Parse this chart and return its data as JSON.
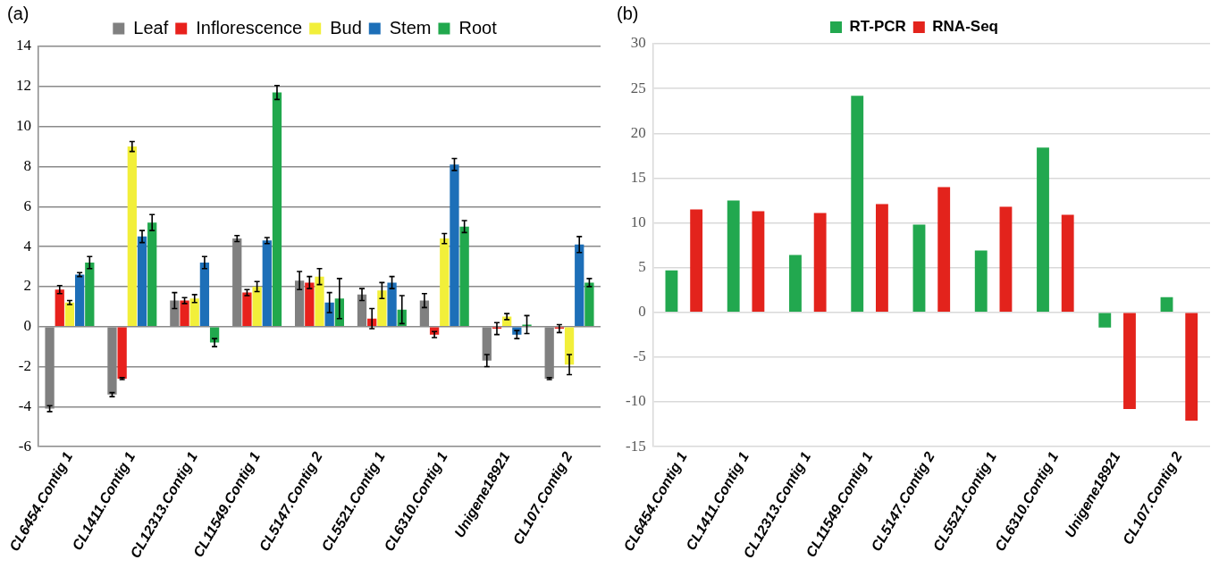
{
  "chart_data": [
    {
      "type": "bar",
      "annotations": [
        "(a)"
      ],
      "categories": [
        "CL6454.Contig 1",
        "CL1411.Contig 1",
        "CL12313.Contig 1",
        "CL11549.Contig 1",
        "CL5147.Contig 2",
        "CL5521.Contig 1",
        "CL6310.Contig 1",
        "Unigene18921",
        "CL107.Contig 2"
      ],
      "series": [
        {
          "name": "Leaf",
          "color": "#808080",
          "values": [
            -4.1,
            -3.4,
            1.3,
            4.4,
            2.3,
            1.6,
            1.3,
            -1.7,
            -2.6
          ],
          "errors": [
            0.15,
            0.1,
            0.4,
            0.15,
            0.45,
            0.3,
            0.35,
            0.3,
            0.05
          ]
        },
        {
          "name": "Inflorescence",
          "color": "#e8211c",
          "values": [
            1.85,
            -2.6,
            1.3,
            1.7,
            2.2,
            0.4,
            -0.4,
            -0.1,
            -0.1
          ],
          "errors": [
            0.2,
            0.05,
            0.15,
            0.15,
            0.3,
            0.5,
            0.15,
            0.3,
            0.2
          ]
        },
        {
          "name": "Bud",
          "color": "#f2ef3a",
          "values": [
            1.2,
            9.0,
            1.4,
            2.0,
            2.5,
            1.8,
            4.4,
            0.5,
            -1.9
          ],
          "errors": [
            0.1,
            0.25,
            0.2,
            0.25,
            0.4,
            0.4,
            0.25,
            0.15,
            0.5
          ]
        },
        {
          "name": "Stem",
          "color": "#1d6fb8",
          "values": [
            2.6,
            4.5,
            3.2,
            4.3,
            1.2,
            2.2,
            8.1,
            -0.4,
            4.1
          ],
          "errors": [
            0.1,
            0.3,
            0.3,
            0.15,
            0.5,
            0.3,
            0.3,
            0.2,
            0.4
          ]
        },
        {
          "name": "Root",
          "color": "#21a84d",
          "values": [
            3.2,
            5.2,
            -0.8,
            11.7,
            1.4,
            0.85,
            5.0,
            0.1,
            2.2
          ],
          "errors": [
            0.3,
            0.4,
            0.2,
            0.35,
            1.0,
            0.7,
            0.3,
            0.45,
            0.2
          ]
        }
      ],
      "ylim": [
        -6,
        14
      ],
      "yticks": [
        -6,
        -4,
        -2,
        0,
        2,
        4,
        6,
        8,
        10,
        12,
        14
      ],
      "grid": "y",
      "legend": "top"
    },
    {
      "type": "bar",
      "annotations": [
        "(b)"
      ],
      "categories": [
        "CL6454.Contig 1",
        "CL1411.Contig 1",
        "CL12313.Contig 1",
        "CL11549.Contig 1",
        "CL5147.Contig 2",
        "CL5521.Contig 1",
        "CL6310.Contig 1",
        "Unigene18921",
        "CL107.Contig 2"
      ],
      "series": [
        {
          "name": "RT-PCR",
          "color": "#22a84f",
          "values": [
            4.7,
            12.5,
            6.4,
            24.2,
            9.8,
            6.9,
            18.4,
            -1.7,
            1.7
          ]
        },
        {
          "name": "RNA-Seq",
          "color": "#e3231c",
          "values": [
            11.5,
            11.3,
            11.1,
            12.1,
            14.0,
            11.8,
            10.9,
            -10.8,
            -12.1
          ]
        }
      ],
      "ylim": [
        -15,
        30
      ],
      "yticks": [
        -15,
        -10,
        -5,
        0,
        5,
        10,
        15,
        20,
        25,
        30
      ],
      "grid": "y",
      "legend": "top"
    }
  ]
}
